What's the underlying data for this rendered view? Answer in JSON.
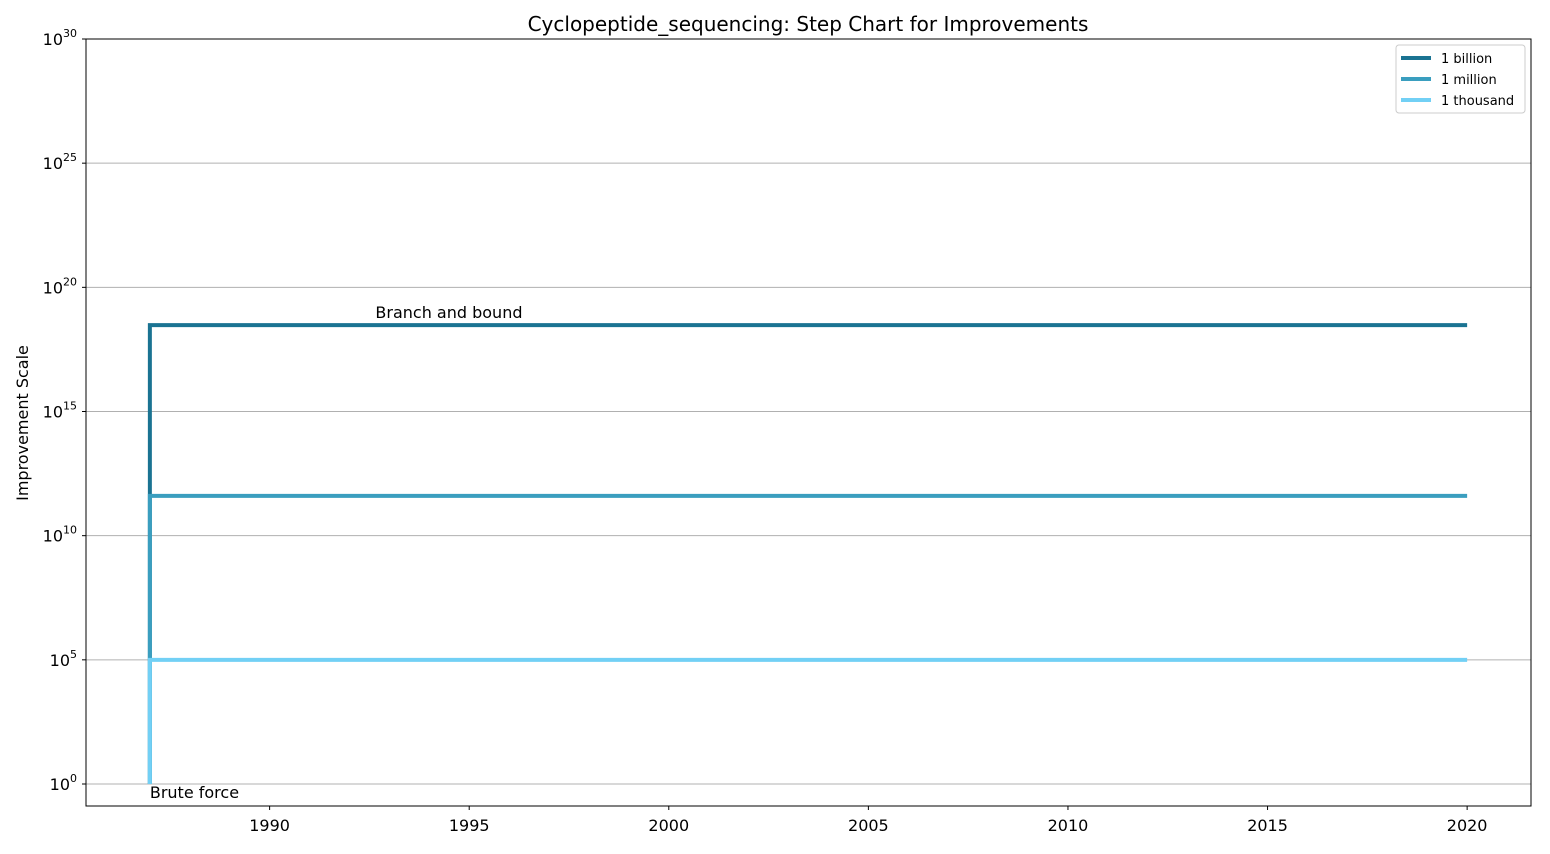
{
  "chart_data": {
    "type": "line",
    "step": true,
    "title": "Cyclopeptide_sequencing: Step Chart for Improvements",
    "xlabel": "",
    "ylabel": "Improvement Scale",
    "y_scale": "log",
    "ylim": [
      1.0,
      1e+30
    ],
    "xlim": [
      1985.4,
      2021.6
    ],
    "xticks": [
      "1990",
      "1995",
      "2000",
      "2005",
      "2010",
      "2015",
      "2020"
    ],
    "yticks": [
      {
        "base": "10",
        "exp": "0"
      },
      {
        "base": "10",
        "exp": "5"
      },
      {
        "base": "10",
        "exp": "10"
      },
      {
        "base": "10",
        "exp": "15"
      },
      {
        "base": "10",
        "exp": "20"
      },
      {
        "base": "10",
        "exp": "25"
      },
      {
        "base": "10",
        "exp": "30"
      }
    ],
    "grid": "horizontal",
    "legend_position": "top-right",
    "series": [
      {
        "name": "1 billion",
        "color": "#1a7392",
        "x": [
          1987,
          1987,
          2020
        ],
        "y": [
          1.0,
          3e+18,
          3e+18
        ]
      },
      {
        "name": "1 million",
        "color": "#3a9ebf",
        "x": [
          1987,
          1987,
          2020
        ],
        "y": [
          1.0,
          400000000000.0,
          400000000000.0
        ]
      },
      {
        "name": "1 thousand",
        "color": "#72d0f5",
        "x": [
          1987,
          1987,
          2020
        ],
        "y": [
          1.0,
          100000.0,
          100000.0
        ]
      }
    ],
    "annotations": [
      {
        "text": "Brute force",
        "x": 1987,
        "y": 1.0
      },
      {
        "text": "Branch and bound",
        "x": 1992.65,
        "y": 3e+18
      }
    ]
  }
}
